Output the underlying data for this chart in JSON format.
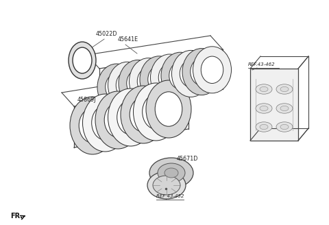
{
  "bg_color": "#ffffff",
  "line_color": "#444444",
  "thin_line": "#666666",
  "figsize": [
    4.8,
    3.28
  ],
  "dpi": 100,
  "labels": {
    "top_ring": "45022D",
    "clutch_pack_top": "45641E",
    "clutch_pack_bottom": "45869J",
    "pressure_plate": "45671D",
    "ref_top_right": "REF.43-462",
    "ref_bottom": "REF 43-452",
    "fr_label": "FR."
  }
}
